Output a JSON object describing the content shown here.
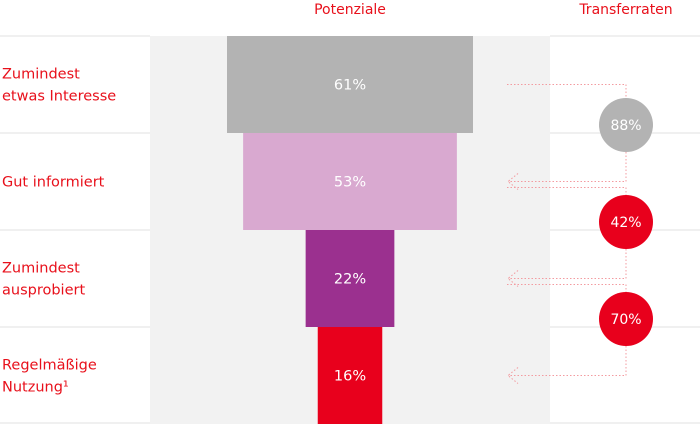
{
  "chart_data": {
    "type": "bar",
    "orientation": "funnel",
    "header": {
      "potentials": "Potenziale",
      "transfer": "Transferraten"
    },
    "categories": [
      "Zumindest etwas Interesse",
      "Gut informiert",
      "Zumindest ausprobiert",
      "Regelmäßige Nutzung¹"
    ],
    "category_lines": [
      [
        "Zumindest",
        "etwas Interesse"
      ],
      [
        "Gut informiert"
      ],
      [
        "Zumindest",
        "ausprobiert"
      ],
      [
        "Regelmäßige",
        "Nutzung¹"
      ]
    ],
    "values": [
      61,
      53,
      22,
      16
    ],
    "value_labels": [
      "61%",
      "53%",
      "22%",
      "16%"
    ],
    "value_max": 61,
    "bar_colors": [
      "#b3b3b3",
      "#d9a9d0",
      "#9b308f",
      "#e8001c"
    ],
    "transfer_rates": [
      88,
      42,
      70
    ],
    "transfer_labels": [
      "88%",
      "42%",
      "70%"
    ],
    "transfer_colors": [
      "#b3b3b3",
      "#e8001c",
      "#e8001c"
    ],
    "colors": {
      "text_accent": "#e8101b",
      "panel_bg": "#f2f2f2",
      "divider": "#e2e2e2",
      "connector": "#f39ba0"
    }
  }
}
